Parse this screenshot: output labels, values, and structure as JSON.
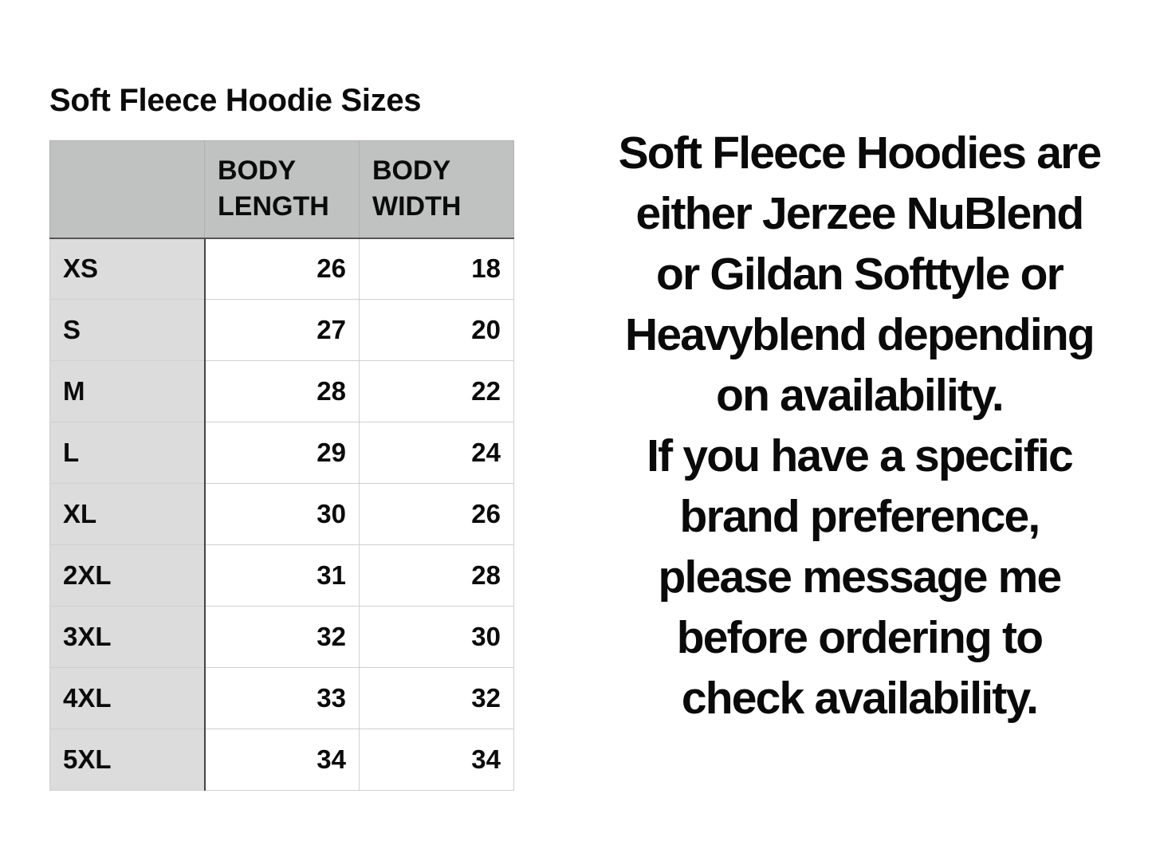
{
  "title": "Soft Fleece Hoodie Sizes",
  "table": {
    "headers": [
      "",
      "BODY LENGTH",
      "BODY WIDTH"
    ],
    "header_lines": [
      [
        "BODY",
        "LENGTH"
      ],
      [
        "BODY",
        "WIDTH"
      ]
    ],
    "rows": [
      {
        "size": "XS",
        "length": "26",
        "width": "18"
      },
      {
        "size": "S",
        "length": "27",
        "width": "20"
      },
      {
        "size": "M",
        "length": "28",
        "width": "22"
      },
      {
        "size": "L",
        "length": "29",
        "width": "24"
      },
      {
        "size": "XL",
        "length": "30",
        "width": "26"
      },
      {
        "size": "2XL",
        "length": "31",
        "width": "28"
      },
      {
        "size": "3XL",
        "length": "32",
        "width": "30"
      },
      {
        "size": "4XL",
        "length": "33",
        "width": "32"
      },
      {
        "size": "5XL",
        "length": "34",
        "width": "34"
      }
    ]
  },
  "note_lines": [
    "Soft Fleece Hoodies are",
    "either Jerzee NuBlend",
    "or Gildan Softtyle or",
    "Heavyblend depending",
    "on availability.",
    "If you have a specific",
    "brand preference,",
    "please message me",
    "before ordering to",
    "check availability."
  ],
  "colors": {
    "header_bg": "#c0c2c1",
    "size_col_bg": "#dcdcdc"
  }
}
